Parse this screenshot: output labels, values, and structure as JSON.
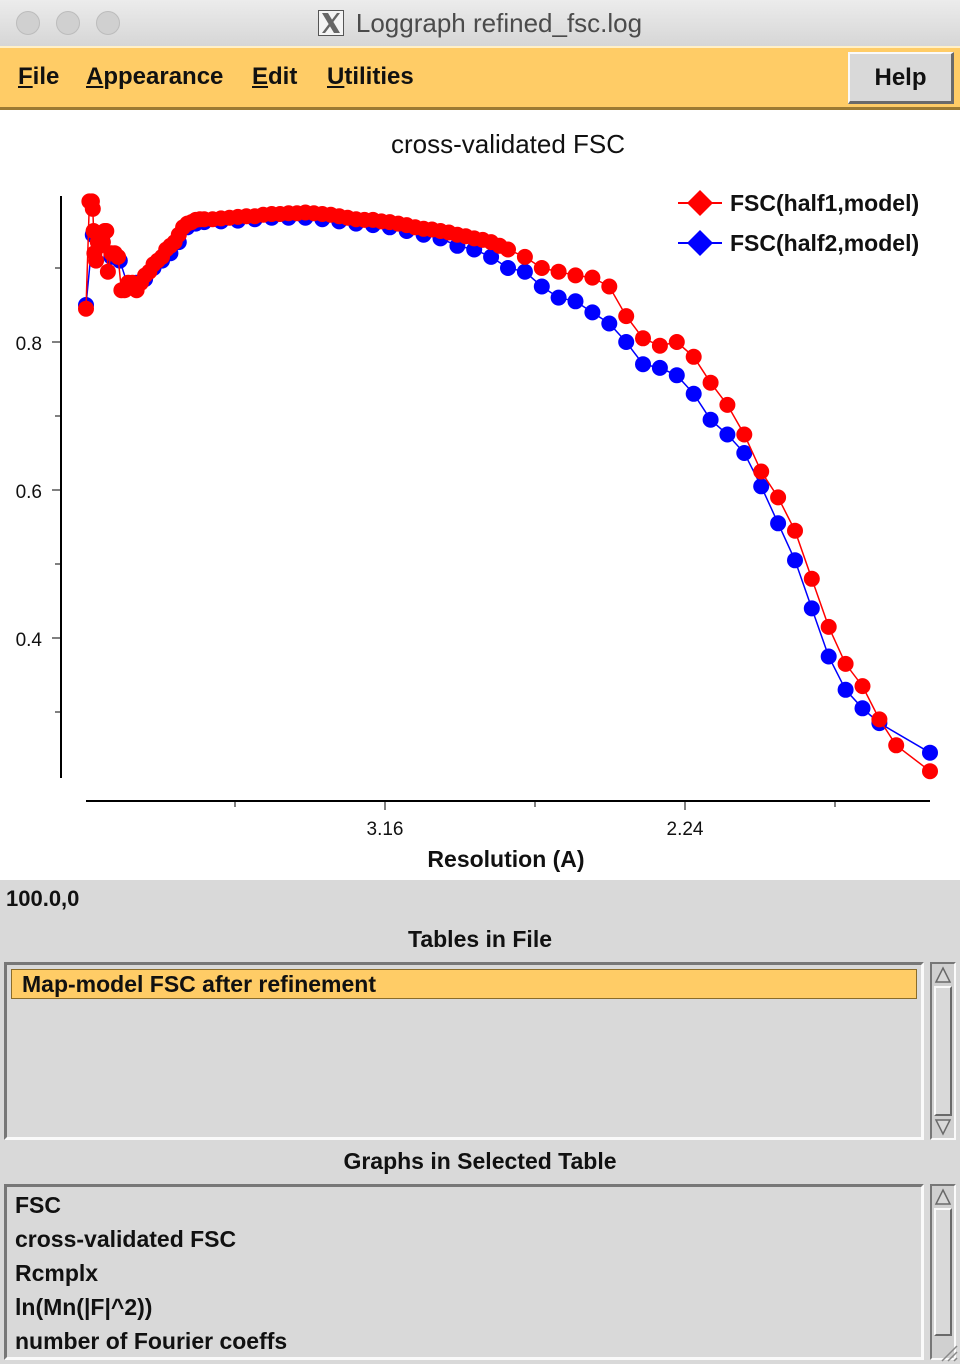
{
  "window": {
    "title": "Loggraph refined_fsc.log",
    "app_icon": "x11-icon"
  },
  "menubar": {
    "items": [
      {
        "label": "File",
        "mnemonic": "F",
        "rest": "ile"
      },
      {
        "label": "Appearance",
        "mnemonic": "A",
        "rest": "ppearance"
      },
      {
        "label": "Edit",
        "mnemonic": "E",
        "rest": "dit"
      },
      {
        "label": "Utilities",
        "mnemonic": "U",
        "rest": "tilities"
      }
    ],
    "help_label": "Help"
  },
  "chart_data": {
    "type": "line",
    "title": "cross-validated FSC",
    "xlabel": "Resolution (A)",
    "ylabel": "",
    "x_ticks": [
      "3.16",
      "2.24"
    ],
    "y_ticks": [
      "0.8",
      "0.6",
      "0.4"
    ],
    "ylim": [
      0.23,
      1.0
    ],
    "legend_position": "top-right",
    "grid": false,
    "series": [
      {
        "name": "FSC(half1,model)",
        "color": "#ff0000",
        "points": [
          [
            0.0,
            0.845
          ],
          [
            0.004,
            0.99
          ],
          [
            0.007,
            0.99
          ],
          [
            0.008,
            0.98
          ],
          [
            0.009,
            0.95
          ],
          [
            0.01,
            0.92
          ],
          [
            0.012,
            0.91
          ],
          [
            0.014,
            0.935
          ],
          [
            0.016,
            0.93
          ],
          [
            0.018,
            0.94
          ],
          [
            0.02,
            0.935
          ],
          [
            0.022,
            0.95
          ],
          [
            0.024,
            0.95
          ],
          [
            0.026,
            0.895
          ],
          [
            0.03,
            0.92
          ],
          [
            0.034,
            0.92
          ],
          [
            0.038,
            0.915
          ],
          [
            0.042,
            0.87
          ],
          [
            0.046,
            0.87
          ],
          [
            0.05,
            0.88
          ],
          [
            0.055,
            0.88
          ],
          [
            0.06,
            0.87
          ],
          [
            0.065,
            0.88
          ],
          [
            0.07,
            0.89
          ],
          [
            0.075,
            0.895
          ],
          [
            0.08,
            0.905
          ],
          [
            0.085,
            0.91
          ],
          [
            0.09,
            0.915
          ],
          [
            0.095,
            0.925
          ],
          [
            0.1,
            0.93
          ],
          [
            0.105,
            0.935
          ],
          [
            0.11,
            0.945
          ],
          [
            0.115,
            0.955
          ],
          [
            0.12,
            0.96
          ],
          [
            0.125,
            0.962
          ],
          [
            0.13,
            0.965
          ],
          [
            0.135,
            0.966
          ],
          [
            0.14,
            0.966
          ],
          [
            0.15,
            0.966
          ],
          [
            0.16,
            0.967
          ],
          [
            0.17,
            0.968
          ],
          [
            0.18,
            0.969
          ],
          [
            0.19,
            0.97
          ],
          [
            0.2,
            0.97
          ],
          [
            0.21,
            0.972
          ],
          [
            0.22,
            0.973
          ],
          [
            0.23,
            0.973
          ],
          [
            0.24,
            0.974
          ],
          [
            0.25,
            0.974
          ],
          [
            0.26,
            0.975
          ],
          [
            0.27,
            0.974
          ],
          [
            0.28,
            0.973
          ],
          [
            0.29,
            0.972
          ],
          [
            0.3,
            0.97
          ],
          [
            0.31,
            0.968
          ],
          [
            0.32,
            0.966
          ],
          [
            0.33,
            0.965
          ],
          [
            0.34,
            0.965
          ],
          [
            0.35,
            0.963
          ],
          [
            0.36,
            0.962
          ],
          [
            0.37,
            0.96
          ],
          [
            0.38,
            0.958
          ],
          [
            0.39,
            0.955
          ],
          [
            0.4,
            0.953
          ],
          [
            0.41,
            0.952
          ],
          [
            0.42,
            0.95
          ],
          [
            0.43,
            0.948
          ],
          [
            0.44,
            0.945
          ],
          [
            0.45,
            0.943
          ],
          [
            0.46,
            0.94
          ],
          [
            0.47,
            0.938
          ],
          [
            0.48,
            0.935
          ],
          [
            0.49,
            0.93
          ],
          [
            0.5,
            0.925
          ],
          [
            0.52,
            0.915
          ],
          [
            0.54,
            0.9
          ],
          [
            0.56,
            0.895
          ],
          [
            0.58,
            0.89
          ],
          [
            0.6,
            0.887
          ],
          [
            0.62,
            0.875
          ],
          [
            0.64,
            0.835
          ],
          [
            0.66,
            0.805
          ],
          [
            0.68,
            0.795
          ],
          [
            0.7,
            0.8
          ],
          [
            0.72,
            0.78
          ],
          [
            0.74,
            0.745
          ],
          [
            0.76,
            0.715
          ],
          [
            0.78,
            0.675
          ],
          [
            0.8,
            0.625
          ],
          [
            0.82,
            0.59
          ],
          [
            0.84,
            0.545
          ],
          [
            0.86,
            0.48
          ],
          [
            0.88,
            0.415
          ],
          [
            0.9,
            0.365
          ],
          [
            0.92,
            0.335
          ],
          [
            0.94,
            0.29
          ],
          [
            0.96,
            0.255
          ],
          [
            1.0,
            0.22
          ]
        ]
      },
      {
        "name": "FSC(half2,model)",
        "color": "#0000ff",
        "points": [
          [
            0.0,
            0.85
          ],
          [
            0.008,
            0.945
          ],
          [
            0.014,
            0.94
          ],
          [
            0.02,
            0.945
          ],
          [
            0.03,
            0.915
          ],
          [
            0.04,
            0.91
          ],
          [
            0.05,
            0.875
          ],
          [
            0.06,
            0.88
          ],
          [
            0.07,
            0.885
          ],
          [
            0.08,
            0.9
          ],
          [
            0.09,
            0.91
          ],
          [
            0.1,
            0.92
          ],
          [
            0.11,
            0.935
          ],
          [
            0.12,
            0.955
          ],
          [
            0.13,
            0.96
          ],
          [
            0.14,
            0.962
          ],
          [
            0.16,
            0.963
          ],
          [
            0.18,
            0.964
          ],
          [
            0.2,
            0.966
          ],
          [
            0.22,
            0.968
          ],
          [
            0.24,
            0.968
          ],
          [
            0.26,
            0.968
          ],
          [
            0.28,
            0.966
          ],
          [
            0.3,
            0.963
          ],
          [
            0.32,
            0.96
          ],
          [
            0.34,
            0.958
          ],
          [
            0.36,
            0.955
          ],
          [
            0.38,
            0.95
          ],
          [
            0.4,
            0.945
          ],
          [
            0.42,
            0.94
          ],
          [
            0.44,
            0.93
          ],
          [
            0.46,
            0.925
          ],
          [
            0.48,
            0.915
          ],
          [
            0.5,
            0.9
          ],
          [
            0.52,
            0.895
          ],
          [
            0.54,
            0.875
          ],
          [
            0.56,
            0.86
          ],
          [
            0.58,
            0.855
          ],
          [
            0.6,
            0.84
          ],
          [
            0.62,
            0.825
          ],
          [
            0.64,
            0.8
          ],
          [
            0.66,
            0.77
          ],
          [
            0.68,
            0.765
          ],
          [
            0.7,
            0.755
          ],
          [
            0.72,
            0.73
          ],
          [
            0.74,
            0.695
          ],
          [
            0.76,
            0.675
          ],
          [
            0.78,
            0.65
          ],
          [
            0.8,
            0.605
          ],
          [
            0.82,
            0.555
          ],
          [
            0.84,
            0.505
          ],
          [
            0.86,
            0.44
          ],
          [
            0.88,
            0.375
          ],
          [
            0.9,
            0.33
          ],
          [
            0.92,
            0.305
          ],
          [
            0.94,
            0.285
          ],
          [
            1.0,
            0.245
          ]
        ]
      }
    ]
  },
  "status": {
    "coords": "100.0,0"
  },
  "tables": {
    "title": "Tables in File",
    "items": [
      "Map-model FSC after refinement"
    ],
    "selected": 0
  },
  "graphs": {
    "title": "Graphs in Selected Table",
    "items": [
      "FSC",
      "cross-validated FSC",
      "Rcmplx",
      "ln(Mn(|F|^2))",
      "number of Fourier coeffs"
    ]
  }
}
